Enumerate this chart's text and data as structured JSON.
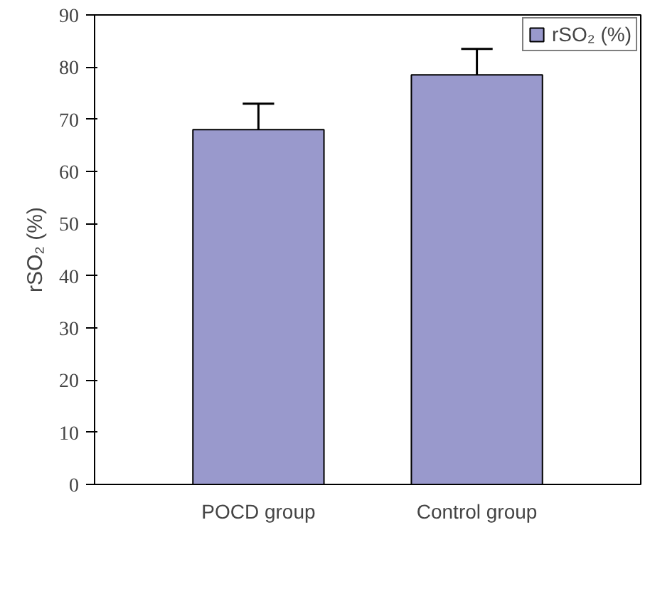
{
  "chart_data": {
    "type": "bar",
    "categories": [
      "POCD group",
      "Control group"
    ],
    "ylabel": "rSO₂ (%)",
    "series": [
      {
        "name": "rSO₂ (%)",
        "color": "#9999cc",
        "values": [
          68,
          78.5
        ],
        "errors": [
          [
            68,
            73
          ],
          [
            78.5,
            83.5
          ]
        ]
      }
    ],
    "ylim": [
      0,
      90
    ],
    "yticks": [
      0,
      10,
      20,
      30,
      40,
      50,
      60,
      70,
      80,
      90
    ],
    "grid": false,
    "legend": "top right"
  }
}
